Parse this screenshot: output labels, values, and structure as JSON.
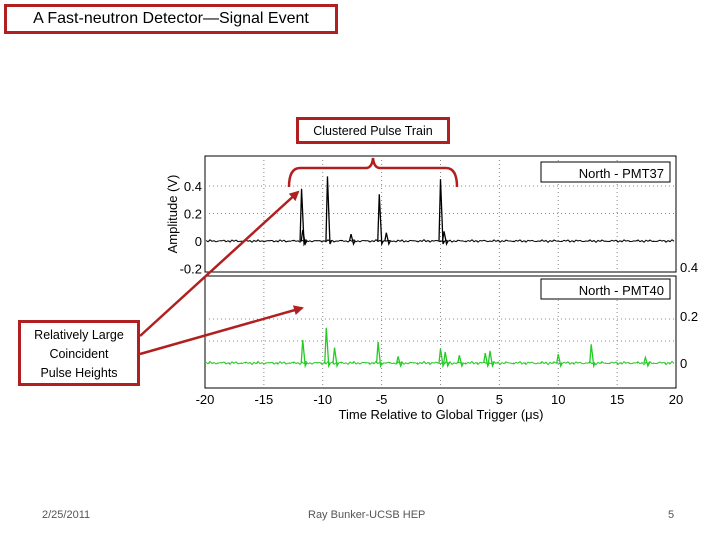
{
  "slide": {
    "title": "A Fast-neutron Detector—Signal Event",
    "callout_top": "Clustered Pulse Train",
    "callout_left": [
      "Relatively Large",
      "Coincident",
      "Pulse Heights"
    ],
    "footer_date": "2/25/2011",
    "footer_author": "Ray Bunker-UCSB HEP",
    "footer_page": "5"
  },
  "colors": {
    "accent": "#b02020",
    "top_trace": "#000000",
    "bottom_trace": "#22cc22"
  },
  "chart_data": [
    {
      "type": "line",
      "legend": "North - PMT37",
      "ylabel": "Amplitude (V)",
      "yticks": [
        "0.4",
        "0.2",
        "0",
        "-0.2"
      ],
      "ylim": [
        -0.2,
        0.55
      ],
      "xlim": [
        -20,
        20
      ],
      "pulses": [
        {
          "x": -11.8,
          "y": 0.38
        },
        {
          "x": -9.6,
          "y": 0.47
        },
        {
          "x": -5.2,
          "y": 0.34
        },
        {
          "x": 0.0,
          "y": 0.45
        },
        {
          "x": -11.7,
          "y": 0.08
        },
        {
          "x": -7.6,
          "y": 0.05
        },
        {
          "x": -4.6,
          "y": 0.06
        },
        {
          "x": 0.3,
          "y": 0.07
        }
      ]
    },
    {
      "type": "line",
      "legend": "North - PMT40",
      "yticks": [
        "0.4",
        "0.2",
        "0"
      ],
      "ylim": [
        -0.03,
        0.5
      ],
      "xlim": [
        -20,
        20
      ],
      "xlabel": "Time Relative to Global Trigger (μs)",
      "xticks": [
        "-20",
        "-15",
        "-10",
        "-5",
        "0",
        "5",
        "10",
        "15",
        "20"
      ],
      "pulses": [
        {
          "x": -11.7,
          "y": 0.21
        },
        {
          "x": -9.7,
          "y": 0.32
        },
        {
          "x": -9.0,
          "y": 0.14
        },
        {
          "x": -5.3,
          "y": 0.19
        },
        {
          "x": -3.6,
          "y": 0.06
        },
        {
          "x": 0.0,
          "y": 0.13
        },
        {
          "x": 0.4,
          "y": 0.1
        },
        {
          "x": 1.6,
          "y": 0.07
        },
        {
          "x": 3.8,
          "y": 0.09
        },
        {
          "x": 4.2,
          "y": 0.11
        },
        {
          "x": 10.0,
          "y": 0.08
        },
        {
          "x": 12.8,
          "y": 0.17
        },
        {
          "x": 17.4,
          "y": 0.05
        }
      ]
    }
  ]
}
